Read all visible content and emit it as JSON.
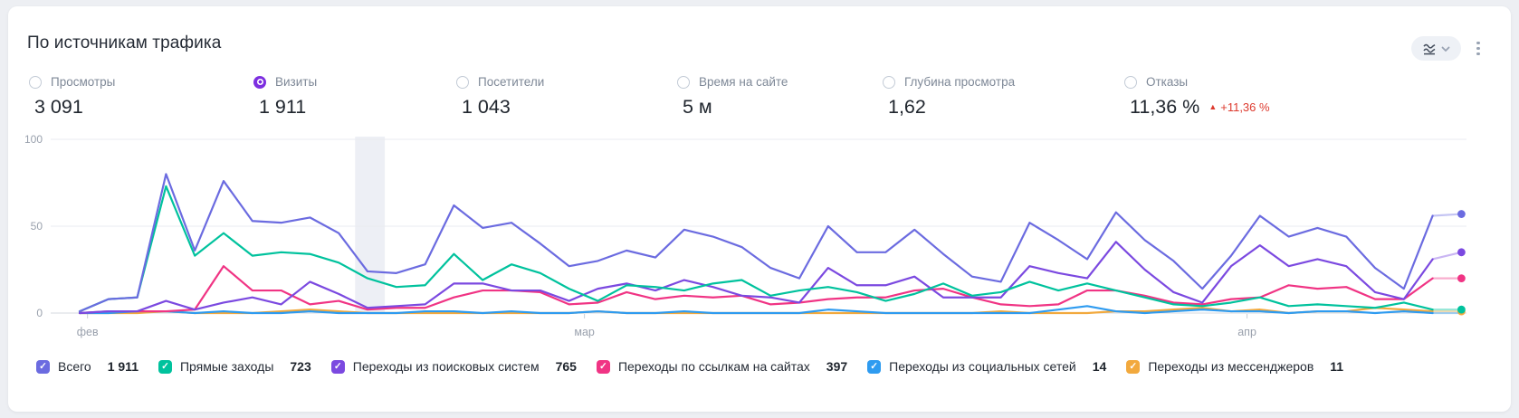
{
  "header": {
    "title": "По источникам трафика"
  },
  "controls": {
    "chart_type_button": "line-chart-style-selector",
    "more_menu": "kebab-menu"
  },
  "accent_colors": {
    "selected_radio": "#7d2fe0",
    "negative_delta_red": "#dd3a2e",
    "card_background": "#ffffff",
    "page_background": "#edeff3",
    "pill_background": "#eef1f6"
  },
  "metrics": [
    {
      "label": "Просмотры",
      "value": "3 091",
      "selected": false
    },
    {
      "label": "Визиты",
      "value": "1 911",
      "selected": true
    },
    {
      "label": "Посетители",
      "value": "1 043",
      "selected": false
    },
    {
      "label": "Время на сайте",
      "value": "5 м",
      "selected": false
    },
    {
      "label": "Глубина просмотра",
      "value": "1,62",
      "selected": false
    },
    {
      "label": "Отказы",
      "value": "11,36 %",
      "selected": false,
      "delta": "+11,36 %",
      "delta_direction": "up"
    }
  ],
  "chart_data": {
    "type": "line",
    "title": "",
    "xlabel": "",
    "ylabel": "",
    "ylim": [
      0,
      100
    ],
    "y_ticks": [
      0,
      50,
      100
    ],
    "grid": true,
    "legend_position": "bottom",
    "x_ticks": [
      {
        "label": "фев",
        "f": 0.026
      },
      {
        "label": "мар",
        "f": 0.377
      },
      {
        "label": "апр",
        "f": 0.845
      }
    ],
    "highlight_band": {
      "f0": 0.215,
      "f1": 0.236,
      "color": "#edeff5"
    },
    "last_segment_faded": true,
    "series": [
      {
        "key": "total",
        "name": "Всего",
        "value": "1 911",
        "color": "#6b6be0",
        "values": [
          1,
          8,
          9,
          80,
          36,
          76,
          53,
          52,
          55,
          46,
          24,
          23,
          28,
          62,
          49,
          52,
          40,
          27,
          30,
          36,
          32,
          48,
          44,
          38,
          26,
          20,
          50,
          35,
          35,
          48,
          34,
          21,
          18,
          52,
          42,
          31,
          58,
          42,
          30,
          14,
          33,
          56,
          44,
          49,
          44,
          26,
          14,
          56,
          57
        ]
      },
      {
        "key": "direct",
        "name": "Прямые заходы",
        "value": "723",
        "color": "#00c29d",
        "values": [
          1,
          8,
          9,
          73,
          33,
          46,
          33,
          35,
          34,
          29,
          20,
          15,
          16,
          34,
          19,
          28,
          23,
          14,
          7,
          16,
          15,
          13,
          17,
          19,
          10,
          13,
          15,
          12,
          7,
          11,
          17,
          10,
          12,
          18,
          13,
          17,
          13,
          9,
          5,
          4,
          6,
          9,
          4,
          5,
          4,
          3,
          6,
          2,
          2
        ]
      },
      {
        "key": "search",
        "name": "Переходы из поисковых систем",
        "value": "765",
        "color": "#7b49e0",
        "values": [
          0,
          1,
          1,
          7,
          2,
          6,
          9,
          5,
          18,
          11,
          3,
          4,
          5,
          17,
          17,
          13,
          13,
          7,
          14,
          17,
          13,
          19,
          15,
          10,
          9,
          6,
          26,
          16,
          16,
          21,
          9,
          9,
          9,
          27,
          23,
          20,
          41,
          25,
          12,
          6,
          27,
          39,
          27,
          31,
          27,
          12,
          8,
          31,
          35
        ]
      },
      {
        "key": "links",
        "name": "Переходы по ссылкам на сайтах",
        "value": "397",
        "color": "#f03484",
        "values": [
          0,
          1,
          1,
          1,
          2,
          27,
          13,
          13,
          5,
          7,
          2,
          3,
          3,
          9,
          13,
          13,
          12,
          5,
          6,
          12,
          8,
          10,
          9,
          10,
          5,
          6,
          8,
          9,
          9,
          13,
          14,
          9,
          5,
          4,
          5,
          13,
          13,
          10,
          6,
          5,
          8,
          9,
          16,
          14,
          15,
          8,
          8,
          20,
          20
        ]
      },
      {
        "key": "social",
        "name": "Переходы из социальных сетей",
        "value": "14",
        "color": "#2e9bf0",
        "values": [
          0,
          0,
          1,
          1,
          0,
          1,
          0,
          0,
          1,
          0,
          0,
          0,
          1,
          1,
          0,
          1,
          0,
          0,
          1,
          0,
          0,
          1,
          0,
          0,
          0,
          0,
          2,
          1,
          0,
          0,
          0,
          0,
          0,
          0,
          2,
          4,
          1,
          0,
          1,
          2,
          1,
          1,
          0,
          1,
          1,
          0,
          1,
          0,
          0
        ]
      },
      {
        "key": "messengers",
        "name": "Переходы из мессенджеров",
        "value": "11",
        "color": "#f2a93d",
        "values": [
          0,
          0,
          0,
          1,
          0,
          0,
          0,
          1,
          2,
          1,
          0,
          0,
          0,
          0,
          0,
          0,
          0,
          0,
          1,
          0,
          0,
          0,
          0,
          0,
          0,
          0,
          0,
          0,
          0,
          0,
          0,
          0,
          1,
          0,
          0,
          0,
          1,
          1,
          2,
          3,
          1,
          2,
          0,
          1,
          1,
          3,
          2,
          1,
          1
        ]
      }
    ]
  }
}
